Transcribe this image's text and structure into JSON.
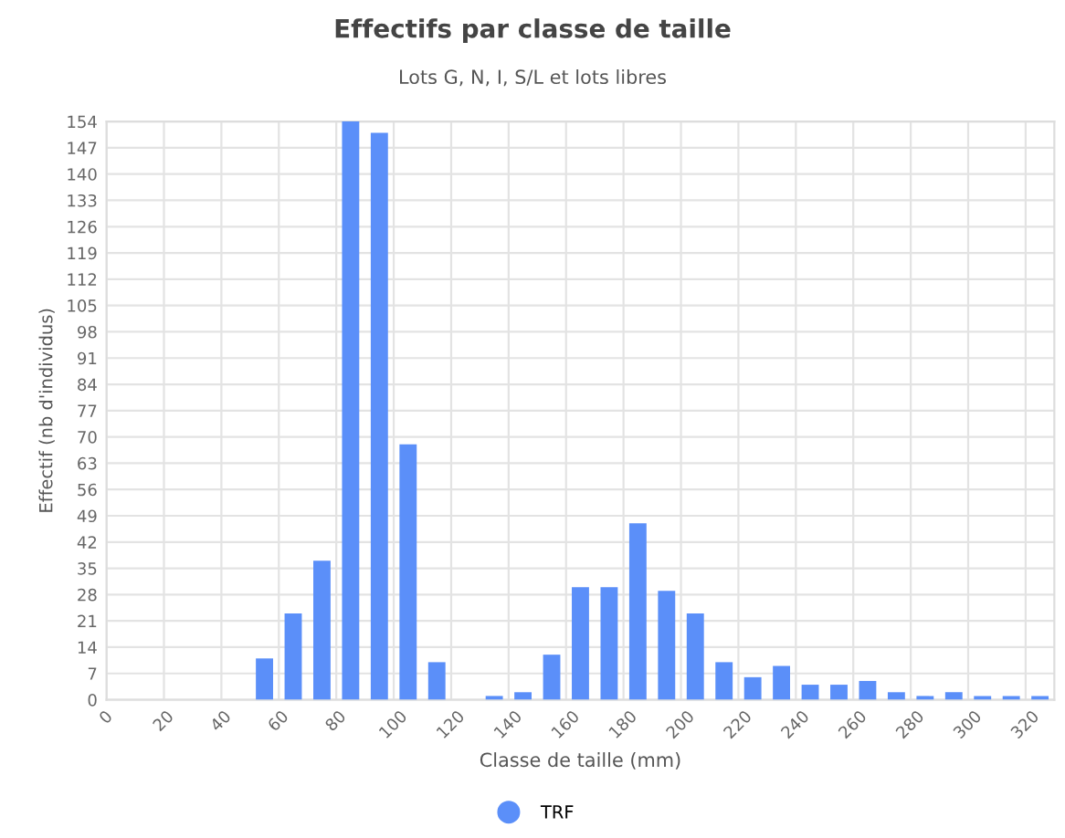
{
  "chart_data": {
    "type": "bar",
    "title": "Effectifs par classe de taille",
    "subtitle": "Lots G, N, I, S/L et lots libres",
    "xlabel": "Classe de taille (mm)",
    "ylabel": "Effectif (nb d'individus)",
    "x": [
      55,
      65,
      75,
      85,
      95,
      105,
      115,
      125,
      135,
      145,
      155,
      165,
      175,
      185,
      195,
      205,
      215,
      225,
      235,
      245,
      255,
      265,
      275,
      285,
      295,
      305,
      315,
      325
    ],
    "series": [
      {
        "name": "TRF",
        "color": "#5b8ff9",
        "values": [
          11,
          23,
          37,
          154,
          151,
          68,
          10,
          0,
          1,
          2,
          12,
          30,
          30,
          47,
          29,
          23,
          10,
          6,
          9,
          4,
          4,
          5,
          2,
          1,
          2,
          1,
          1,
          1
        ]
      }
    ],
    "xlim": [
      0,
      330
    ],
    "xticks": [
      0,
      20,
      40,
      60,
      80,
      100,
      120,
      140,
      160,
      180,
      200,
      220,
      240,
      260,
      280,
      300,
      320
    ],
    "ylim": [
      0,
      154
    ],
    "yticks": [
      0,
      7,
      14,
      21,
      28,
      35,
      42,
      49,
      56,
      63,
      70,
      77,
      84,
      91,
      98,
      105,
      112,
      119,
      126,
      133,
      140,
      147,
      154
    ],
    "grid": true,
    "legend": "bottom"
  }
}
